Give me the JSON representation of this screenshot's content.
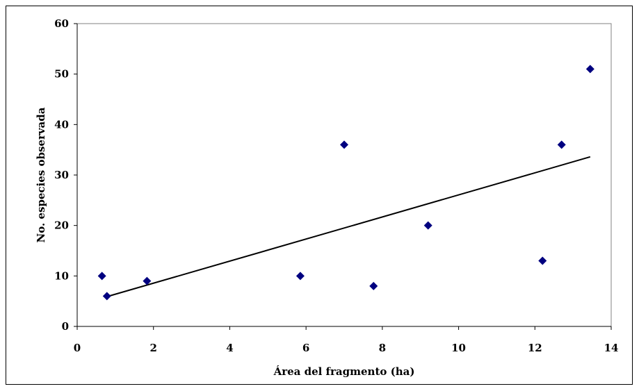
{
  "chart_data": {
    "type": "scatter",
    "title": "",
    "xlabel": "Área del fragmento (ha)",
    "ylabel": "No. especies observada",
    "xlim": [
      0,
      14
    ],
    "ylim": [
      0,
      60
    ],
    "x_ticks": [
      "0",
      "2",
      "4",
      "6",
      "8",
      "10",
      "12",
      "14"
    ],
    "y_ticks": [
      "0",
      "10",
      "20",
      "30",
      "40",
      "50",
      "60"
    ],
    "grid": false,
    "legend": "none",
    "series": [
      {
        "marker": "diamond",
        "color": "#000080",
        "x": [
          0.65,
          0.78,
          1.83,
          5.85,
          7.0,
          7.77,
          9.2,
          12.2,
          12.7,
          13.45
        ],
        "y": [
          10,
          6,
          9,
          10,
          36,
          8,
          20,
          13,
          36,
          51
        ]
      }
    ],
    "trendline": {
      "type": "linear",
      "color": "#000000",
      "x": [
        0.78,
        13.45
      ],
      "y": [
        5.9,
        33.6
      ]
    }
  }
}
